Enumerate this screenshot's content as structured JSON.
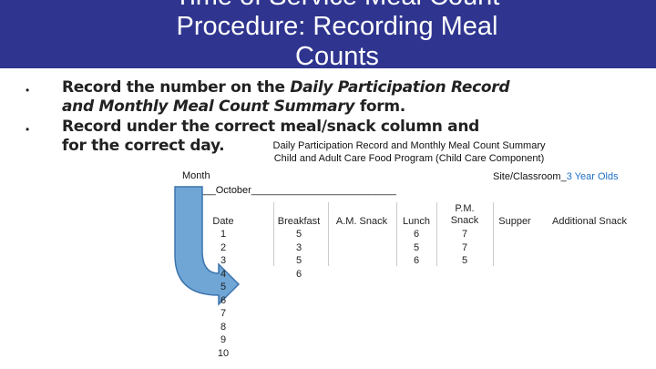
{
  "title": "Time of Service Meal Count Procedure: Recording Meal Counts",
  "bullets": [
    {
      "segments": [
        {
          "text": "Record the number on the ",
          "italic": false
        },
        {
          "text": "Daily Participation Record",
          "italic": true
        },
        {
          "text": " and Monthly Meal Count Summary",
          "italic": true
        },
        {
          "text": " form.",
          "italic": false
        }
      ]
    },
    {
      "segments": [
        {
          "text": "Record under the correct meal/snack column and for the correct day.",
          "italic": false
        }
      ]
    }
  ],
  "form": {
    "heading": "Daily Participation Record and Monthly Meal Count Summary",
    "subheading": "Child and Adult Care Food Program (Child Care Component)",
    "month_label": "Month",
    "month_value": "______October__________________________",
    "site_label": "Site/Classroom_",
    "site_value": "3 Year Olds",
    "table": {
      "columns": [
        "Date",
        "Breakfast",
        "A.M. Snack",
        "Lunch",
        "P.M. Snack",
        "Supper",
        "Additional Snack"
      ],
      "rows": [
        [
          "1",
          "5",
          null,
          "6",
          "7",
          null,
          null
        ],
        [
          "2",
          "3",
          null,
          "5",
          "7",
          null,
          null
        ],
        [
          "3",
          "5",
          null,
          "6",
          "5",
          null,
          null
        ],
        [
          "4",
          "6",
          null,
          null,
          null,
          null,
          null
        ],
        [
          "5",
          null,
          null,
          null,
          null,
          null,
          null
        ],
        [
          "6",
          null,
          null,
          null,
          null,
          null,
          null
        ],
        [
          "7",
          null,
          null,
          null,
          null,
          null,
          null
        ],
        [
          "8",
          null,
          null,
          null,
          null,
          null,
          null
        ],
        [
          "9",
          null,
          null,
          null,
          null,
          null,
          null
        ],
        [
          "10",
          null,
          null,
          null,
          null,
          null,
          null
        ]
      ]
    }
  }
}
